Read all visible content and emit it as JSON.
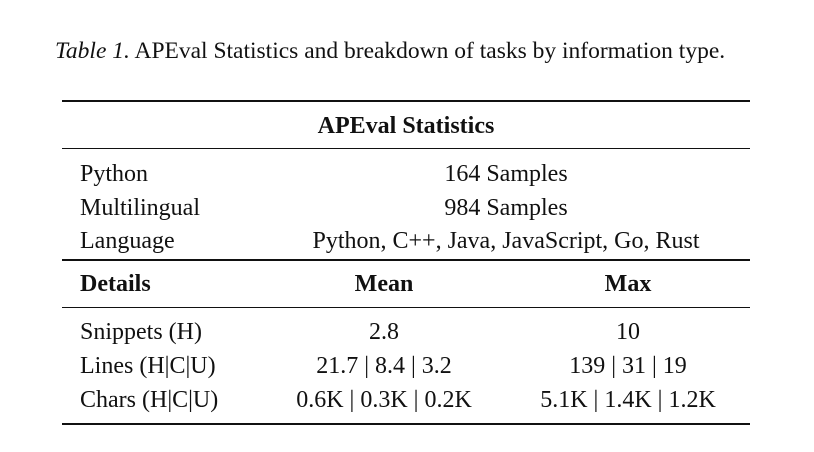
{
  "caption": {
    "label": "Table 1.",
    "text": "APEval Statistics and breakdown of tasks by information type."
  },
  "table": {
    "title": "APEval Statistics",
    "stats": [
      [
        "Python",
        "164 Samples"
      ],
      [
        "Multilingual",
        "984 Samples"
      ],
      [
        "Language",
        "Python, C++, Java, JavaScript, Go, Rust"
      ]
    ],
    "header": [
      "Details",
      "Mean",
      "Max"
    ],
    "rows": [
      [
        "Snippets (H)",
        "2.8",
        "10"
      ],
      [
        "Lines (H|C|U)",
        "21.7 | 8.4 | 3.2",
        "139 | 31 | 19"
      ],
      [
        "Chars (H|C|U)",
        "0.6K | 0.3K | 0.2K",
        "5.1K | 1.4K | 1.2K"
      ]
    ]
  }
}
